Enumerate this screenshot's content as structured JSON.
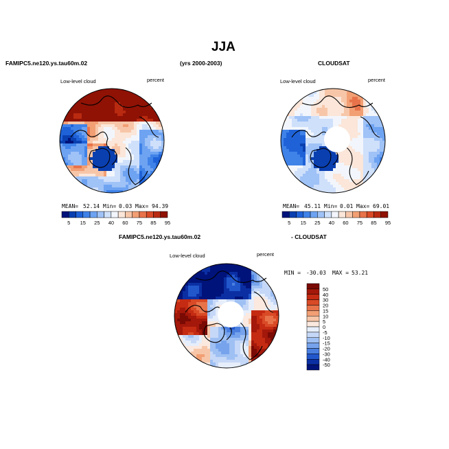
{
  "figure": {
    "title": "JJA",
    "top_left_label": "FAMIPC5.ne120.ys.tau60m.02",
    "period_label": "(yrs 2000-2003)",
    "top_right_label": "CLOUDSAT",
    "bottom_left_label": "FAMIPC5.ne120.ys.tau60m.02",
    "bottom_right_label": "- CLOUDSAT"
  },
  "chart_data": [
    {
      "type": "heatmap",
      "projection": "north-polar-stereographic",
      "variable_label": "Low-level cloud",
      "units_label": "percent",
      "stats": {
        "mean_label": "MEAN=",
        "mean": "52.14",
        "min_label": "Min=",
        "min": "0.03",
        "max_label": "Max=",
        "max": "94.39"
      },
      "colorbar": {
        "orientation": "horizontal",
        "levels": [
          "5",
          "15",
          "25",
          "40",
          "60",
          "75",
          "85",
          "95"
        ],
        "colors": [
          "#00137a",
          "#0a3fb0",
          "#1f62d8",
          "#3f82e8",
          "#6ea3f2",
          "#9fc2f7",
          "#cfe0fb",
          "#f2f6fc",
          "#fbe6d9",
          "#f7c6a8",
          "#f29f74",
          "#e8734a",
          "#d94a26",
          "#b92a10",
          "#8f1205"
        ]
      },
      "pattern": "model"
    },
    {
      "type": "heatmap",
      "projection": "north-polar-stereographic",
      "variable_label": "Low-level cloud",
      "units_label": "percent",
      "stats": {
        "mean_label": "MEAN=",
        "mean": "45.11",
        "min_label": "Min=",
        "min": "0.01",
        "max_label": "Max=",
        "max": "69.01"
      },
      "colorbar": {
        "orientation": "horizontal",
        "levels": [
          "5",
          "15",
          "25",
          "40",
          "60",
          "75",
          "85",
          "95"
        ],
        "colors": [
          "#00137a",
          "#0a3fb0",
          "#1f62d8",
          "#3f82e8",
          "#6ea3f2",
          "#9fc2f7",
          "#cfe0fb",
          "#f2f6fc",
          "#fbe6d9",
          "#f7c6a8",
          "#f29f74",
          "#e8734a",
          "#d94a26",
          "#b92a10",
          "#8f1205"
        ]
      },
      "pattern": "obs"
    },
    {
      "type": "heatmap",
      "projection": "north-polar-stereographic",
      "variable_label": "Low-level cloud",
      "units_label": "percent",
      "stats": {
        "min_label": "MIN =",
        "min": "-30.03",
        "max_label": "MAX =",
        "max": "53.21"
      },
      "colorbar": {
        "orientation": "vertical",
        "levels": [
          "50",
          "40",
          "30",
          "20",
          "15",
          "10",
          "5",
          "0",
          "-5",
          "-10",
          "-15",
          "-20",
          "-30",
          "-40",
          "-50"
        ],
        "colors": [
          "#7a0a04",
          "#a3180a",
          "#c42b12",
          "#d94a26",
          "#e8734a",
          "#f29f74",
          "#f7c6a8",
          "#fbe8de",
          "#e6eefb",
          "#c6d8f7",
          "#9fc0f3",
          "#76a3ec",
          "#4a7fe0",
          "#2257cc",
          "#0b2fa3",
          "#00137a"
        ]
      },
      "pattern": "diff"
    }
  ]
}
